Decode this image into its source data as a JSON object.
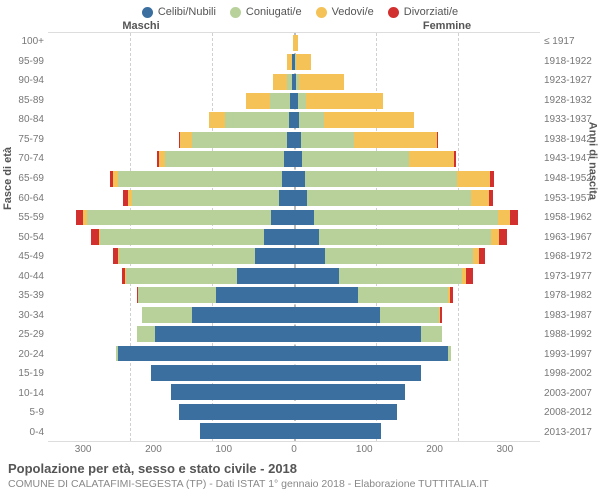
{
  "chart": {
    "type": "population-pyramid",
    "legend": [
      {
        "label": "Celibi/Nubili",
        "color": "#3b6fa0"
      },
      {
        "label": "Coniugati/e",
        "color": "#b8d19a"
      },
      {
        "label": "Vedovi/e",
        "color": "#f4c257"
      },
      {
        "label": "Divorziati/e",
        "color": "#d22f2f"
      }
    ],
    "headers": {
      "left": "Maschi",
      "right": "Femmine"
    },
    "y_title_left": "Fasce di età",
    "y_title_right": "Anni di nascita",
    "x_max": 300,
    "x_ticks": [
      300,
      200,
      100,
      0,
      100,
      200,
      300
    ],
    "grid_color": "#d0d0d0",
    "background_color": "#ffffff",
    "age_labels": [
      "100+",
      "95-99",
      "90-94",
      "85-89",
      "80-84",
      "75-79",
      "70-74",
      "65-69",
      "60-64",
      "55-59",
      "50-54",
      "45-49",
      "40-44",
      "35-39",
      "30-34",
      "25-29",
      "20-24",
      "15-19",
      "10-14",
      "5-9",
      "0-4"
    ],
    "birth_labels": [
      "≤ 1917",
      "1918-1922",
      "1923-1927",
      "1928-1932",
      "1933-1937",
      "1938-1942",
      "1943-1947",
      "1948-1952",
      "1953-1957",
      "1958-1962",
      "1963-1967",
      "1968-1972",
      "1973-1977",
      "1978-1982",
      "1983-1987",
      "1988-1992",
      "1993-1997",
      "1998-2002",
      "2003-2007",
      "2008-2012",
      "2013-2017"
    ],
    "rows": [
      {
        "m": [
          0,
          0,
          1,
          0
        ],
        "f": [
          0,
          0,
          5,
          0
        ]
      },
      {
        "m": [
          2,
          1,
          5,
          0
        ],
        "f": [
          1,
          1,
          19,
          0
        ]
      },
      {
        "m": [
          3,
          5,
          18,
          0
        ],
        "f": [
          3,
          3,
          55,
          0
        ]
      },
      {
        "m": [
          5,
          24,
          29,
          0
        ],
        "f": [
          5,
          10,
          94,
          0
        ]
      },
      {
        "m": [
          6,
          78,
          20,
          0
        ],
        "f": [
          6,
          30,
          110,
          0
        ]
      },
      {
        "m": [
          9,
          115,
          15,
          1
        ],
        "f": [
          8,
          65,
          102,
          1
        ]
      },
      {
        "m": [
          12,
          145,
          8,
          2
        ],
        "f": [
          10,
          130,
          55,
          2
        ]
      },
      {
        "m": [
          15,
          200,
          6,
          4
        ],
        "f": [
          14,
          185,
          40,
          5
        ]
      },
      {
        "m": [
          18,
          180,
          5,
          5
        ],
        "f": [
          16,
          200,
          22,
          5
        ]
      },
      {
        "m": [
          28,
          225,
          4,
          9
        ],
        "f": [
          24,
          225,
          15,
          9
        ]
      },
      {
        "m": [
          36,
          200,
          2,
          9
        ],
        "f": [
          30,
          210,
          10,
          10
        ]
      },
      {
        "m": [
          48,
          165,
          2,
          6
        ],
        "f": [
          38,
          180,
          8,
          7
        ]
      },
      {
        "m": [
          70,
          135,
          1,
          4
        ],
        "f": [
          55,
          150,
          5,
          8
        ]
      },
      {
        "m": [
          95,
          95,
          0,
          2
        ],
        "f": [
          78,
          110,
          2,
          4
        ]
      },
      {
        "m": [
          125,
          60,
          0,
          1
        ],
        "f": [
          105,
          72,
          1,
          2
        ]
      },
      {
        "m": [
          170,
          22,
          0,
          0
        ],
        "f": [
          155,
          25,
          0,
          0
        ]
      },
      {
        "m": [
          215,
          2,
          0,
          0
        ],
        "f": [
          188,
          3,
          0,
          0
        ]
      },
      {
        "m": [
          175,
          0,
          0,
          0
        ],
        "f": [
          155,
          0,
          0,
          0
        ]
      },
      {
        "m": [
          150,
          0,
          0,
          0
        ],
        "f": [
          135,
          0,
          0,
          0
        ]
      },
      {
        "m": [
          140,
          0,
          0,
          0
        ],
        "f": [
          125,
          0,
          0,
          0
        ]
      },
      {
        "m": [
          115,
          0,
          0,
          0
        ],
        "f": [
          106,
          0,
          0,
          0
        ]
      }
    ]
  },
  "footer": {
    "title": "Popolazione per età, sesso e stato civile - 2018",
    "sub": "COMUNE DI CALATAFIMI-SEGESTA (TP) - Dati ISTAT 1° gennaio 2018 - Elaborazione TUTTITALIA.IT"
  }
}
